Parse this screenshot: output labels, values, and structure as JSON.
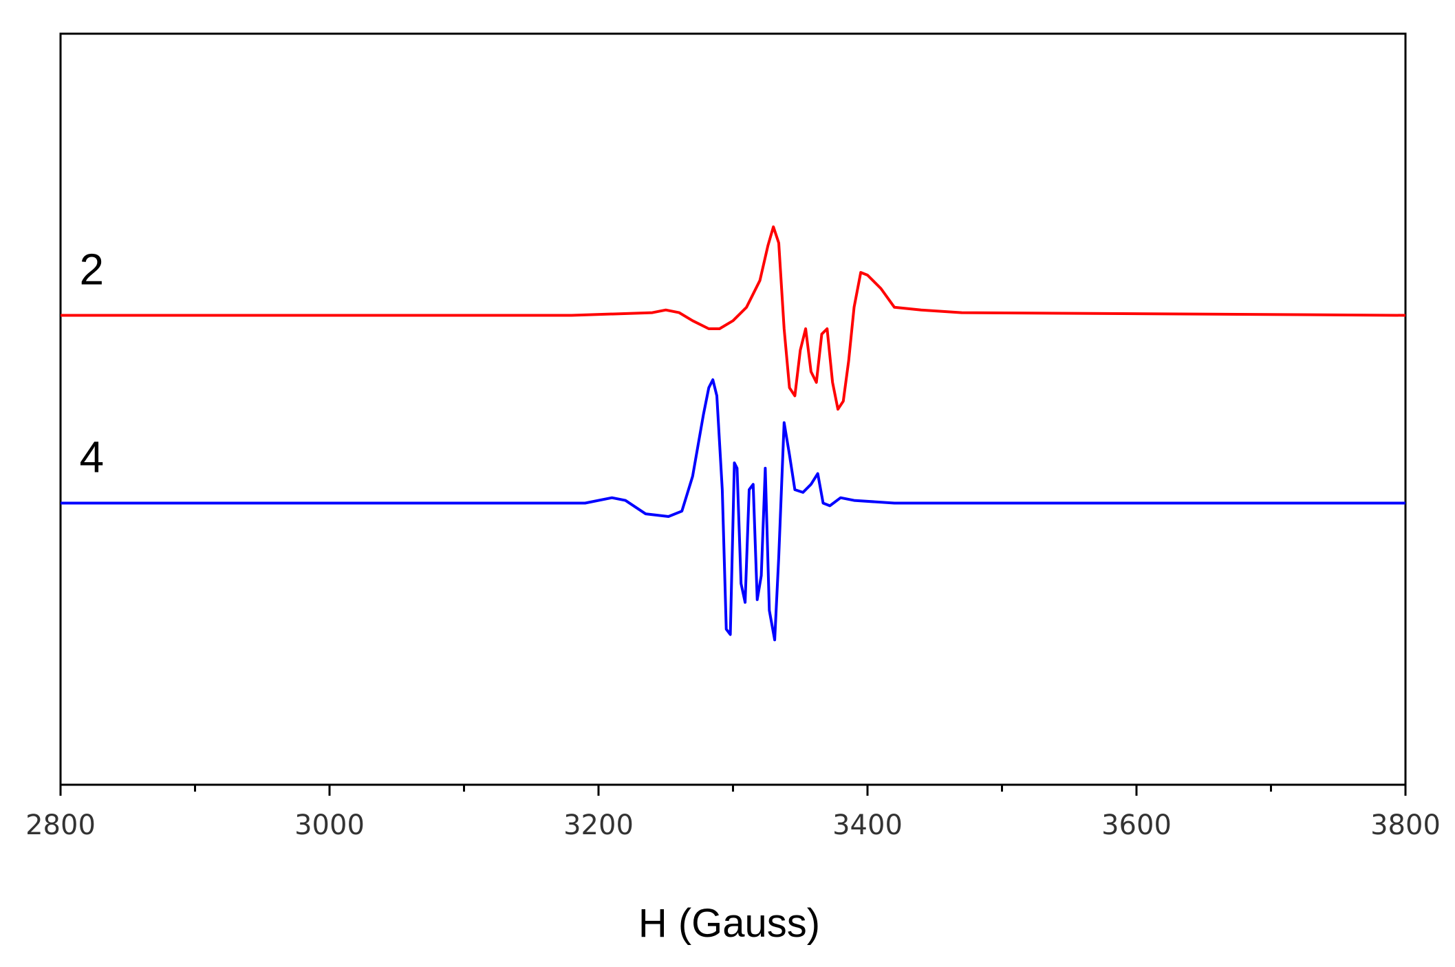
{
  "chart_data": {
    "type": "line",
    "title": "",
    "xlabel": "H (Gauss)",
    "ylabel": "",
    "xlim": [
      2800,
      3800
    ],
    "ylim": [
      -1.4,
      1.4
    ],
    "xticks": [
      2800,
      3000,
      3200,
      3400,
      3600,
      3800
    ],
    "xtick_labels": [
      "2800",
      "3000",
      "3200",
      "3400",
      "3600",
      "3800"
    ],
    "minor_xticks": [
      2900,
      3100,
      3300,
      3500,
      3700
    ],
    "yticks_visible": false,
    "grid": false,
    "legend": "none",
    "series": [
      {
        "name": "2",
        "color": "#ff0000",
        "offset": 0.35,
        "x": [
          2800,
          3180,
          3240,
          3250,
          3260,
          3270,
          3282,
          3290,
          3300,
          3310,
          3320,
          3326,
          3330,
          3334,
          3338,
          3342,
          3346,
          3350,
          3354,
          3358,
          3362,
          3366,
          3370,
          3374,
          3378,
          3382,
          3386,
          3390,
          3395,
          3400,
          3410,
          3420,
          3440,
          3470,
          3800
        ],
        "y": [
          0.35,
          0.35,
          0.36,
          0.37,
          0.36,
          0.33,
          0.3,
          0.3,
          0.33,
          0.38,
          0.48,
          0.61,
          0.68,
          0.62,
          0.3,
          0.08,
          0.05,
          0.22,
          0.3,
          0.14,
          0.1,
          0.28,
          0.3,
          0.1,
          0.0,
          0.03,
          0.18,
          0.38,
          0.51,
          0.5,
          0.45,
          0.38,
          0.37,
          0.36,
          0.35
        ]
      },
      {
        "name": "4",
        "color": "#0000ff",
        "offset": -0.35,
        "x": [
          2800,
          3190,
          3210,
          3220,
          3235,
          3252,
          3262,
          3270,
          3278,
          3282,
          3285,
          3288,
          3292,
          3295,
          3298,
          3301,
          3303,
          3306,
          3309,
          3312,
          3315,
          3318,
          3321,
          3324,
          3327,
          3331,
          3334,
          3338,
          3342,
          3346,
          3352,
          3358,
          3363,
          3367,
          3372,
          3380,
          3390,
          3420,
          3800
        ],
        "y": [
          -0.35,
          -0.35,
          -0.33,
          -0.34,
          -0.39,
          -0.4,
          -0.38,
          -0.25,
          -0.02,
          0.08,
          0.11,
          0.05,
          -0.3,
          -0.82,
          -0.84,
          -0.2,
          -0.22,
          -0.65,
          -0.72,
          -0.3,
          -0.28,
          -0.71,
          -0.62,
          -0.22,
          -0.75,
          -0.86,
          -0.55,
          -0.05,
          -0.17,
          -0.3,
          -0.31,
          -0.28,
          -0.24,
          -0.35,
          -0.36,
          -0.33,
          -0.34,
          -0.35,
          -0.35
        ]
      }
    ]
  }
}
